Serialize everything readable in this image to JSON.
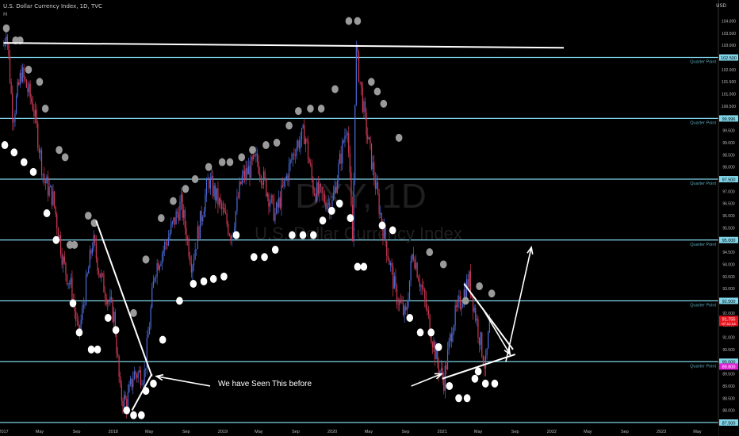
{
  "header": {
    "symbol_line": "U.S. Dollar Currency Index, 1D, TVC",
    "sub": "M",
    "currency": "USD"
  },
  "watermark": {
    "ticker": "DXY, 1D",
    "name": "U.S. Dollar Currency Index"
  },
  "annotation": "We have Seen This before",
  "colors": {
    "background": "#000000",
    "level_line": "#7fd4e8",
    "level_label_bg": "#7fd4e8",
    "bull_candle": "#4a6cd8",
    "bear_candle": "#d23a55",
    "dot_white": "#ffffff",
    "dot_gray": "#9a9a9a",
    "price_tag": "#e8141e",
    "magenta_tag": "#e020d8"
  },
  "chart_data": {
    "type": "candlestick",
    "ylim": [
      87.5,
      104.7
    ],
    "y_ticks": [
      "104.000",
      "103.500",
      "103.000",
      "102.500",
      "102.000",
      "101.500",
      "101.000",
      "100.500",
      "100.000",
      "99.996",
      "99.500",
      "99.000",
      "98.500",
      "98.000",
      "97.500",
      "97.000",
      "96.500",
      "96.000",
      "95.500",
      "95.000",
      "94.500",
      "94.000",
      "93.500",
      "93.000",
      "92.500",
      "92.000",
      "91.500",
      "91.000",
      "90.500",
      "90.000",
      "89.500",
      "89.000",
      "88.500",
      "88.000",
      "87.500"
    ],
    "x_ticks": [
      "2017",
      "May",
      "Sep",
      "2018",
      "May",
      "Sep",
      "2019",
      "May",
      "Sep",
      "2020",
      "May",
      "Sep",
      "2021",
      "May",
      "Sep",
      "2022",
      "May",
      "Sep",
      "2023",
      "May"
    ],
    "levels": [
      {
        "value": 102.5,
        "label": "102.500",
        "tag": "Quarter Point"
      },
      {
        "value": 99.996,
        "label": "99.996",
        "tag": "Quarter Point"
      },
      {
        "value": 97.5,
        "label": "97.500",
        "tag": "Quarter Point"
      },
      {
        "value": 95.0,
        "label": "95.000",
        "tag": "Quarter Point"
      },
      {
        "value": 92.5,
        "label": "92.500",
        "tag": "Quarter Point"
      },
      {
        "value": 90.0,
        "label": "90.000",
        "tag": "Quarter Point"
      },
      {
        "value": 87.5,
        "label": "87.500",
        "tag": ""
      }
    ],
    "price_tags": [
      {
        "value": 91.755,
        "label": "91.755",
        "sub": "07:11:14",
        "kind": "red"
      },
      {
        "value": 89.8,
        "label": "89.800",
        "kind": "magenta"
      }
    ],
    "dates_max": "2021-06-10",
    "price_path": [
      [
        "2017-01-01",
        103.0
      ],
      [
        "2017-01-10",
        103.8
      ],
      [
        "2017-02-01",
        100.0
      ],
      [
        "2017-03-01",
        101.9
      ],
      [
        "2017-04-10",
        100.5
      ],
      [
        "2017-05-15",
        97.5
      ],
      [
        "2017-06-15",
        96.7
      ],
      [
        "2017-07-20",
        94.0
      ],
      [
        "2017-08-15",
        93.0
      ],
      [
        "2017-09-08",
        91.0
      ],
      [
        "2017-10-25",
        95.0
      ],
      [
        "2017-11-20",
        93.5
      ],
      [
        "2018-01-05",
        91.8
      ],
      [
        "2018-01-25",
        88.6
      ],
      [
        "2018-02-15",
        88.3
      ],
      [
        "2018-03-10",
        89.5
      ],
      [
        "2018-04-15",
        89.5
      ],
      [
        "2018-05-20",
        93.8
      ],
      [
        "2018-06-30",
        95.0
      ],
      [
        "2018-08-15",
        96.5
      ],
      [
        "2018-09-20",
        94.0
      ],
      [
        "2018-11-15",
        97.5
      ],
      [
        "2018-12-30",
        96.2
      ],
      [
        "2019-01-30",
        95.2
      ],
      [
        "2019-03-05",
        97.5
      ],
      [
        "2019-04-25",
        98.3
      ],
      [
        "2019-06-25",
        96.0
      ],
      [
        "2019-08-30",
        98.8
      ],
      [
        "2019-10-01",
        99.4
      ],
      [
        "2019-10-30",
        97.1
      ],
      [
        "2019-12-30",
        96.4
      ],
      [
        "2020-02-20",
        99.9
      ],
      [
        "2020-03-09",
        94.7
      ],
      [
        "2020-03-19",
        102.9
      ],
      [
        "2020-04-20",
        99.8
      ],
      [
        "2020-06-10",
        96.0
      ],
      [
        "2020-07-30",
        92.8
      ],
      [
        "2020-09-01",
        91.8
      ],
      [
        "2020-09-25",
        94.6
      ],
      [
        "2020-11-05",
        92.4
      ],
      [
        "2020-12-15",
        90.0
      ],
      [
        "2021-01-06",
        89.2
      ],
      [
        "2021-02-05",
        91.6
      ],
      [
        "2021-03-31",
        93.4
      ],
      [
        "2021-05-25",
        89.7
      ],
      [
        "2021-06-10",
        91.8
      ]
    ],
    "gray_dots": [
      [
        "2017-01-10",
        103.7
      ],
      [
        "2017-03-25",
        102.0
      ],
      [
        "2017-02-10",
        103.2
      ],
      [
        "2017-02-25",
        103.2
      ],
      [
        "2017-05-01",
        101.5
      ],
      [
        "2017-05-20",
        100.4
      ],
      [
        "2017-07-05",
        98.7
      ],
      [
        "2017-07-25",
        98.4
      ],
      [
        "2017-08-10",
        94.8
      ],
      [
        "2017-08-25",
        94.8
      ],
      [
        "2017-10-10",
        96.0
      ],
      [
        "2017-10-30",
        95.7
      ],
      [
        "2018-03-10",
        92.0
      ],
      [
        "2018-04-20",
        94.2
      ],
      [
        "2018-04-20",
        94.2
      ],
      [
        "2018-06-10",
        95.9
      ],
      [
        "2018-07-20",
        96.6
      ],
      [
        "2018-08-30",
        97.1
      ],
      [
        "2018-10-01",
        97.5
      ],
      [
        "2018-11-15",
        98.0
      ],
      [
        "2018-12-30",
        98.2
      ],
      [
        "2019-01-25",
        98.2
      ],
      [
        "2019-03-05",
        98.4
      ],
      [
        "2019-04-10",
        98.7
      ],
      [
        "2019-05-25",
        98.9
      ],
      [
        "2019-06-30",
        99.0
      ],
      [
        "2019-08-10",
        99.7
      ],
      [
        "2019-09-10",
        100.3
      ],
      [
        "2019-10-20",
        100.4
      ],
      [
        "2019-11-25",
        100.4
      ],
      [
        "2020-01-10",
        101.2
      ],
      [
        "2020-02-25",
        104.0
      ],
      [
        "2020-03-25",
        104.0
      ],
      [
        "2020-05-10",
        101.5
      ],
      [
        "2020-05-30",
        101.1
      ],
      [
        "2020-06-20",
        100.6
      ],
      [
        "2020-08-10",
        99.2
      ],
      [
        "2020-11-20",
        94.5
      ],
      [
        "2021-01-05",
        94.0
      ],
      [
        "2021-03-20",
        92.5
      ],
      [
        "2021-05-05",
        93.1
      ],
      [
        "2021-06-15",
        92.8
      ]
    ],
    "white_dots": [
      [
        "2017-01-05",
        98.9
      ],
      [
        "2017-02-05",
        98.6
      ],
      [
        "2017-03-10",
        98.2
      ],
      [
        "2017-04-10",
        97.8
      ],
      [
        "2017-05-25",
        96.1
      ],
      [
        "2017-06-25",
        95.0
      ],
      [
        "2017-08-20",
        92.4
      ],
      [
        "2017-09-10",
        91.2
      ],
      [
        "2017-10-20",
        90.5
      ],
      [
        "2017-11-10",
        90.5
      ],
      [
        "2017-12-15",
        91.8
      ],
      [
        "2018-01-10",
        91.3
      ],
      [
        "2018-02-15",
        88.0
      ],
      [
        "2018-03-10",
        87.8
      ],
      [
        "2018-04-05",
        87.8
      ],
      [
        "2018-04-20",
        88.8
      ],
      [
        "2018-05-15",
        89.1
      ],
      [
        "2018-06-15",
        90.9
      ],
      [
        "2018-08-10",
        92.5
      ],
      [
        "2018-09-25",
        93.2
      ],
      [
        "2018-10-30",
        93.3
      ],
      [
        "2018-12-01",
        93.4
      ],
      [
        "2019-01-05",
        93.5
      ],
      [
        "2019-02-15",
        95.2
      ],
      [
        "2019-04-15",
        94.3
      ],
      [
        "2019-05-20",
        94.3
      ],
      [
        "2019-06-25",
        94.6
      ],
      [
        "2019-08-20",
        95.2
      ],
      [
        "2019-09-25",
        95.2
      ],
      [
        "2019-10-30",
        95.2
      ],
      [
        "2019-11-30",
        95.8
      ],
      [
        "2019-12-30",
        96.2
      ],
      [
        "2020-01-25",
        96.5
      ],
      [
        "2020-03-01",
        95.9
      ],
      [
        "2020-03-25",
        93.9
      ],
      [
        "2020-04-15",
        93.9
      ],
      [
        "2020-06-15",
        95.6
      ],
      [
        "2020-07-20",
        95.4
      ],
      [
        "2020-09-15",
        91.8
      ],
      [
        "2020-10-20",
        91.2
      ],
      [
        "2020-11-25",
        91.2
      ],
      [
        "2020-12-20",
        90.6
      ],
      [
        "2021-01-25",
        89.0
      ],
      [
        "2021-02-25",
        88.5
      ],
      [
        "2021-03-25",
        88.5
      ],
      [
        "2021-04-20",
        89.3
      ],
      [
        "2021-05-25",
        89.1
      ],
      [
        "2021-06-25",
        89.1
      ],
      [
        "2021-05-01",
        89.6
      ]
    ],
    "trend_lines": [
      {
        "from": [
          "2017-01-01",
          103.1
        ],
        "to": [
          "2022-02-10",
          102.9
        ]
      },
      {
        "from": [
          "2017-11-05",
          95.8
        ],
        "to": [
          "2018-05-10",
          89.4
        ]
      },
      {
        "from": [
          "2018-03-05",
          88.0
        ],
        "to": [
          "2018-05-10",
          89.5
        ]
      },
      {
        "from": [
          "2021-01-01",
          89.3
        ],
        "to": [
          "2021-09-01",
          90.3
        ]
      },
      {
        "from": [
          "2021-03-15",
          93.2
        ],
        "to": [
          "2021-08-25",
          90.5
        ]
      }
    ],
    "arrows": [
      {
        "from": [
          "2018-11-20",
          89.0
        ],
        "to": [
          "2018-05-25",
          89.4
        ]
      },
      {
        "from": [
          "2020-09-20",
          89.0
        ],
        "to": [
          "2020-12-30",
          89.5
        ]
      },
      {
        "from": [
          "2021-05-15",
          92.2
        ],
        "to": [
          "2021-08-15",
          90.3
        ]
      },
      {
        "from": [
          "2021-08-01",
          90.0
        ],
        "to": [
          "2021-10-25",
          94.7
        ]
      }
    ]
  }
}
